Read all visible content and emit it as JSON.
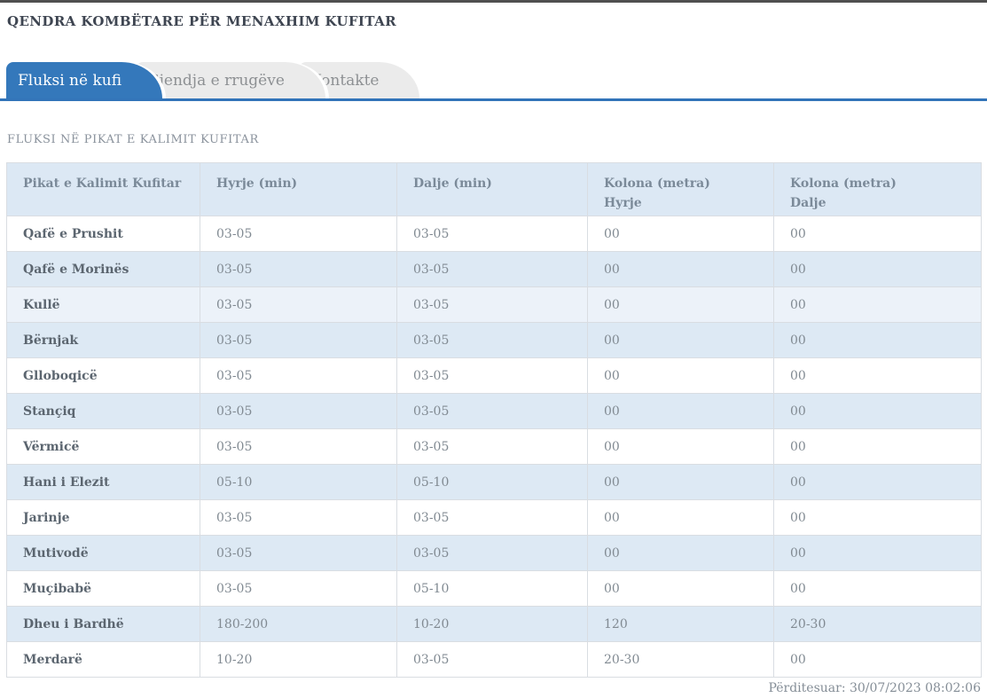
{
  "page": {
    "title": "QENDRA KOMBËTARE PËR MENAXHIM KUFITAR",
    "updated": "Përditesuar: 30/07/2023 08:02:06"
  },
  "tabs": [
    {
      "label": "Fluksi në kufi",
      "active": true
    },
    {
      "label": "Gjendja e rrugëve",
      "active": false
    },
    {
      "label": "Kontakte",
      "active": false
    }
  ],
  "section": {
    "title": "FLUKSI NË PIKAT E KALIMIT KUFITAR"
  },
  "table": {
    "columns": [
      {
        "line1": "Pikat e Kalimit Kufitar",
        "line2": ""
      },
      {
        "line1": "Hyrje (min)",
        "line2": ""
      },
      {
        "line1": "Dalje (min)",
        "line2": ""
      },
      {
        "line1": "Kolona (metra)",
        "line2": "Hyrje"
      },
      {
        "line1": "Kolona (metra)",
        "line2": "Dalje"
      }
    ],
    "rows": [
      {
        "shade": "white",
        "cells": [
          "Qafë e Prushit",
          "03-05",
          "03-05",
          "00",
          "00"
        ]
      },
      {
        "shade": "blue",
        "cells": [
          "Qafë e Morinës",
          "03-05",
          "03-05",
          "00",
          "00"
        ]
      },
      {
        "shade": "light",
        "cells": [
          "Kullë",
          "03-05",
          "03-05",
          "00",
          "00"
        ]
      },
      {
        "shade": "blue",
        "cells": [
          "Bërnjak",
          "03-05",
          "03-05",
          "00",
          "00"
        ]
      },
      {
        "shade": "white",
        "cells": [
          "Glloboqicë",
          "03-05",
          "03-05",
          "00",
          "00"
        ]
      },
      {
        "shade": "blue",
        "cells": [
          "Stançiq",
          "03-05",
          "03-05",
          "00",
          "00"
        ]
      },
      {
        "shade": "white",
        "cells": [
          "Vërmicë",
          "03-05",
          "03-05",
          "00",
          "00"
        ]
      },
      {
        "shade": "blue",
        "cells": [
          "Hani i Elezit",
          "05-10",
          "05-10",
          "00",
          "00"
        ]
      },
      {
        "shade": "white",
        "cells": [
          "Jarinje",
          "03-05",
          "03-05",
          "00",
          "00"
        ]
      },
      {
        "shade": "blue",
        "cells": [
          "Mutivodë",
          "03-05",
          "03-05",
          "00",
          "00"
        ]
      },
      {
        "shade": "white",
        "cells": [
          "Muçibabë",
          "03-05",
          "05-10",
          "00",
          "00"
        ]
      },
      {
        "shade": "blue",
        "cells": [
          "Dheu i Bardhë",
          "180-200",
          "10-20",
          "120",
          "20-30"
        ]
      },
      {
        "shade": "white",
        "cells": [
          "Merdarë",
          "10-20",
          "03-05",
          "20-30",
          "00"
        ]
      }
    ]
  },
  "colors": {
    "accent_blue": "#3478bb",
    "tab_underline": "#3274b9",
    "header_row_bg": "#dce8f4",
    "row_blue_bg": "#dde9f4",
    "row_highlight_bg": "#ecf2f9",
    "inactive_tab_bg": "#ebebeb",
    "table_border": "#d9dde2"
  }
}
